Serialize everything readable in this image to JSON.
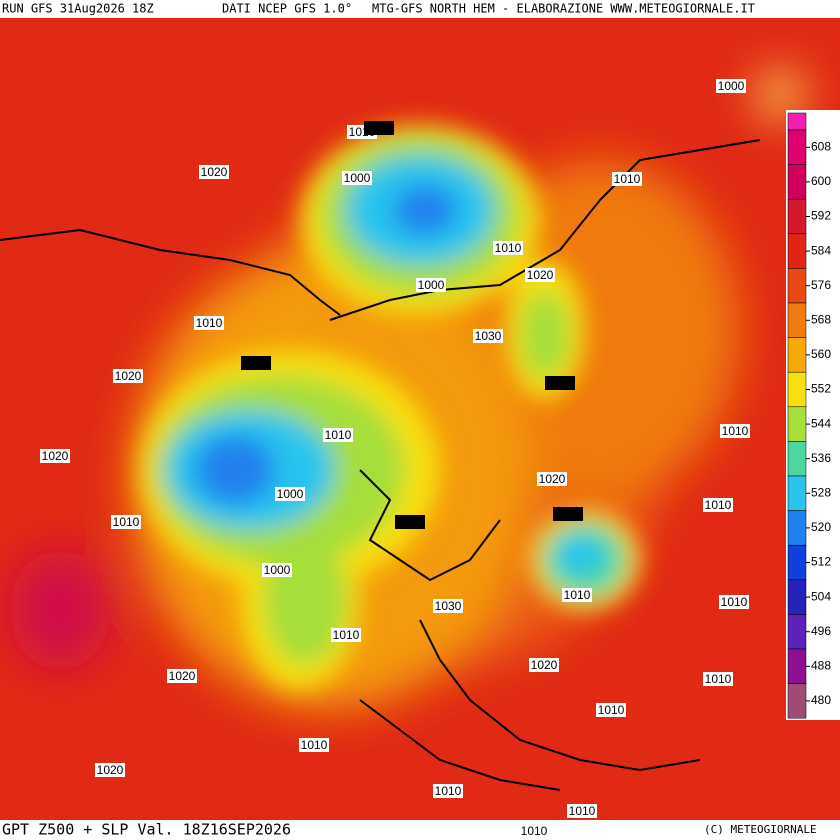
{
  "header": {
    "run": "RUN GFS 31Aug2026 18Z",
    "source": "DATI NCEP GFS 1.0°",
    "credit": "MTG-GFS NORTH HEM - ELABORAZIONE WWW.METEOGIORNALE.IT"
  },
  "footer": {
    "title": "GPT Z500 + SLP Val. 18Z16SEP2026",
    "copyright": "(C) METEOGIORNALE"
  },
  "legend": {
    "ticks": [
      608,
      600,
      592,
      584,
      576,
      568,
      560,
      552,
      544,
      536,
      528,
      520,
      512,
      504,
      496,
      488,
      480
    ],
    "colors": [
      "#e0006e",
      "#d2005a",
      "#d6182e",
      "#e22414",
      "#ea4a12",
      "#f27a10",
      "#f8a808",
      "#f8e010",
      "#a6de3a",
      "#4ad8a0",
      "#28c4ee",
      "#2080ee",
      "#1040dc",
      "#2424bc",
      "#5a22b8",
      "#8c1090",
      "#a04a78"
    ]
  },
  "contour_labels": [
    1000,
    1010,
    552,
    1020,
    1000,
    1010,
    1010,
    1020,
    1000,
    1010,
    1030,
    552,
    1020,
    552,
    1010,
    1010,
    1020,
    1000,
    1020,
    1010,
    1010,
    552,
    552,
    1000,
    1010,
    1010,
    1030,
    1010,
    1020,
    1020,
    1010,
    1010,
    1010,
    1020,
    1010,
    1010,
    1010
  ]
}
